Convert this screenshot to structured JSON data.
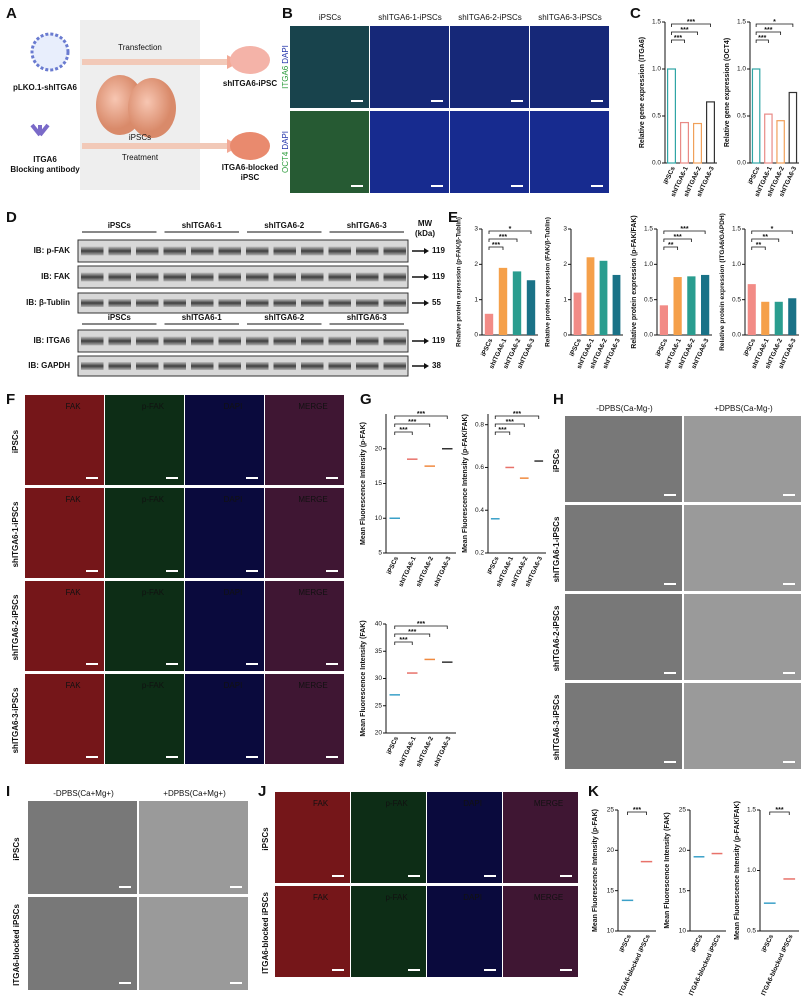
{
  "panels": {
    "A": {
      "label": "A",
      "plasmid": "pLKO.1-shITGA6",
      "antibody": [
        "ITGA6",
        "Blocking antibody"
      ],
      "transfection": "Transfection",
      "treatment": "Treatment",
      "center": "iPSCs",
      "result_top": "shITGA6-iPSC",
      "result_bottom": [
        "ITGA6-blocked",
        "iPSC"
      ]
    },
    "B": {
      "label": "B",
      "columns": [
        "iPSCs",
        "shITGA6-1-iPSCs",
        "shITGA6-2-iPSCs",
        "shITGA6-3-iPSCs"
      ],
      "rows": [
        {
          "marker": "ITGA6",
          "stain": "DAPI"
        },
        {
          "marker": "OCT4",
          "stain": "DAPI"
        }
      ]
    },
    "C": {
      "label": "C"
    },
    "D": {
      "label": "D",
      "groups": [
        "iPSCs",
        "shITGA6-1",
        "shITGA6-2",
        "shITGA6-3"
      ],
      "mw": "MW",
      "mw_unit": "(kDa)",
      "blots": [
        {
          "label": "IB: p-FAK",
          "mw": 119
        },
        {
          "label": "IB: FAK",
          "mw": 119
        },
        {
          "label": "IB: β-Tublin",
          "mw": 55
        },
        {
          "label": "IB: ITGA6",
          "mw": 119
        },
        {
          "label": "IB: GAPDH",
          "mw": 38
        }
      ]
    },
    "E": {
      "label": "E"
    },
    "F": {
      "label": "F",
      "channels": [
        "FAK",
        "p-FAK",
        "DAPI",
        "MERGE"
      ],
      "rows": [
        "iPSCs",
        "shITGA6-1-iPSCs",
        "shITGA6-2-iPSCs",
        "shITGA6-3-iPSCs"
      ]
    },
    "G": {
      "label": "G"
    },
    "H": {
      "label": "H",
      "columns": [
        "-DPBS(Ca-Mg-)",
        "+DPBS(Ca-Mg-)"
      ],
      "rows": [
        "iPSCs",
        "shITGA6-1-iPSCs",
        "shITGA6-2-iPSCs",
        "shITGA6-3-iPSCs"
      ]
    },
    "I": {
      "label": "I",
      "columns": [
        "-DPBS(Ca+Mg+)",
        "+DPBS(Ca+Mg+)"
      ],
      "rows": [
        "iPSCs",
        "ITGA6-blocked iPSCs"
      ]
    },
    "J": {
      "label": "J",
      "channels": [
        "FAK",
        "p-FAK",
        "DAPI",
        "MERGE"
      ],
      "rows": [
        "iPSCs",
        "ITGA6-blocked iPSCs"
      ]
    },
    "K": {
      "label": "K"
    }
  },
  "chart_data": [
    {
      "type": "bar",
      "style": "outline",
      "y_label": "Relative gene expression (ITGA6)",
      "categories": [
        "iPSCs",
        "shITGA6-1",
        "shITGA6-2",
        "shITGA6-3"
      ],
      "values": [
        1.0,
        0.43,
        0.42,
        0.65
      ],
      "colors": [
        "#2fa5a5",
        "#e98a86",
        "#f0a05a",
        "#333333"
      ],
      "ylim": [
        0,
        1.5
      ],
      "yticks": [
        {
          "value": 0,
          "label": "0.0"
        },
        0.5,
        {
          "value": 1,
          "label": "1.0"
        },
        1.5
      ],
      "significance": [
        "***",
        "***",
        "***"
      ]
    },
    {
      "type": "bar",
      "style": "outline",
      "y_label": "Relative gene expression (OCT4)",
      "categories": [
        "iPSCs",
        "shITGA6-1",
        "shITGA6-2",
        "shITGA6-3"
      ],
      "values": [
        1.0,
        0.52,
        0.45,
        0.75
      ],
      "colors": [
        "#2fa5a5",
        "#e98a86",
        "#f0a05a",
        "#333333"
      ],
      "ylim": [
        0,
        1.5
      ],
      "yticks": [
        {
          "value": 0,
          "label": "0.0"
        },
        0.5,
        {
          "value": 1,
          "label": "1.0"
        },
        1.5
      ],
      "significance": [
        "***",
        "***",
        "*"
      ]
    },
    {
      "type": "bar",
      "style": "fill",
      "y_label": "Relative protein expression (p-FAK/β-Tublin)",
      "categories": [
        "iPSCs",
        "shITGA6-1",
        "shITGA6-2",
        "shITGA6-3"
      ],
      "values": [
        0.6,
        1.9,
        1.8,
        1.55
      ],
      "colors": [
        "#f28b86",
        "#f5a04a",
        "#2a9d8f",
        "#1a7287"
      ],
      "ylim": [
        0,
        3
      ],
      "yticks": [
        0,
        1,
        2,
        3
      ],
      "significance": [
        "***",
        "***",
        "*"
      ]
    },
    {
      "type": "bar",
      "style": "fill",
      "y_label": "Relative protein expression (FAK/β-Tublin)",
      "categories": [
        "iPSCs",
        "shITGA6-1",
        "shITGA6-2",
        "shITGA6-3"
      ],
      "values": [
        1.2,
        2.2,
        2.1,
        1.7
      ],
      "colors": [
        "#f28b86",
        "#f5a04a",
        "#2a9d8f",
        "#1a7287"
      ],
      "ylim": [
        0,
        3
      ],
      "yticks": [
        0,
        1,
        2,
        3
      ]
    },
    {
      "type": "bar",
      "style": "fill",
      "y_label": "Relative protein expression (p-FAK/FAK)",
      "categories": [
        "iPSCs",
        "shITGA6-1",
        "shITGA6-2",
        "shITGA6-3"
      ],
      "values": [
        0.42,
        0.82,
        0.83,
        0.85
      ],
      "colors": [
        "#f28b86",
        "#f5a04a",
        "#2a9d8f",
        "#1a7287"
      ],
      "ylim": [
        0,
        1.5
      ],
      "yticks": [
        {
          "value": 0,
          "label": "0.0"
        },
        0.5,
        {
          "value": 1,
          "label": "1.0"
        },
        1.5
      ],
      "significance": [
        "**",
        "***",
        "***"
      ]
    },
    {
      "type": "bar",
      "style": "fill",
      "y_label": "Relative protein expression (ITGA6/GAPDH)",
      "categories": [
        "iPSCs",
        "shITGA6-1",
        "shITGA6-2",
        "shITGA6-3"
      ],
      "values": [
        0.72,
        0.47,
        0.47,
        0.52
      ],
      "colors": [
        "#f28b86",
        "#f5a04a",
        "#2a9d8f",
        "#1a7287"
      ],
      "ylim": [
        0,
        1.5
      ],
      "yticks": [
        {
          "value": 0,
          "label": "0.0"
        },
        0.5,
        {
          "value": 1,
          "label": "1.0"
        },
        1.5
      ],
      "significance": [
        "**",
        "**",
        "*"
      ]
    },
    {
      "type": "dot",
      "y_label": "Mean Fluorescence Intensity (p-FAK)",
      "categories": [
        "iPSCs",
        "shITGA6-1",
        "shITGA6-2",
        "shITGA6-3"
      ],
      "values": [
        10,
        18.5,
        17.5,
        20
      ],
      "colors": [
        "#3aa0c8",
        "#e8726a",
        "#f08a40",
        "#333333"
      ],
      "ylim": [
        5,
        25
      ],
      "yticks": [
        5,
        10,
        15,
        20
      ],
      "significance": [
        "***",
        "***",
        "***"
      ]
    },
    {
      "type": "dot",
      "y_label": "Mean Fluorescence Intensity (p-FAK/FAK)",
      "categories": [
        "iPSCs",
        "shITGA6-1",
        "shITGA6-2",
        "shITGA6-3"
      ],
      "values": [
        0.36,
        0.6,
        0.55,
        0.63
      ],
      "colors": [
        "#3aa0c8",
        "#e8726a",
        "#f08a40",
        "#333333"
      ],
      "ylim": [
        0.2,
        0.85
      ],
      "yticks": [
        0.2,
        0.4,
        0.6,
        0.8
      ],
      "significance": [
        "***",
        "***",
        "***"
      ]
    },
    {
      "type": "dot",
      "y_label": "Mean Fluorescence Intensity (FAK)",
      "categories": [
        "iPSCs",
        "shITGA6-1",
        "shITGA6-2",
        "shITGA6-3"
      ],
      "values": [
        27,
        31,
        33.5,
        33
      ],
      "colors": [
        "#3aa0c8",
        "#e8726a",
        "#f08a40",
        "#333333"
      ],
      "ylim": [
        20,
        40
      ],
      "yticks": [
        20,
        25,
        30,
        35,
        40
      ],
      "significance": [
        "***",
        "***",
        "***"
      ]
    },
    {
      "type": "dot",
      "y_label": "Mean Fluorescence Intensity (p-FAK)",
      "categories": [
        "iPSCs",
        "ITGA6-blocked iPSCs"
      ],
      "values": [
        13.8,
        18.6
      ],
      "colors": [
        "#3aa0c8",
        "#e8726a"
      ],
      "ylim": [
        10,
        25
      ],
      "yticks": [
        10,
        15,
        20,
        25
      ],
      "significance": [
        "***"
      ]
    },
    {
      "type": "dot",
      "y_label": "Mean Fluorescence Intensity (FAK)",
      "categories": [
        "iPSCs",
        "ITGA6-blocked iPSCs"
      ],
      "values": [
        19.2,
        19.6
      ],
      "colors": [
        "#3aa0c8",
        "#e8726a"
      ],
      "ylim": [
        10,
        25
      ],
      "yticks": [
        10,
        15,
        20,
        25
      ]
    },
    {
      "type": "dot",
      "y_label": "Mean Fluorescence Intensity (p-FAK/FAK)",
      "categories": [
        "iPSCs",
        "ITGA6-blocked iPSCs"
      ],
      "values": [
        0.73,
        0.93
      ],
      "colors": [
        "#3aa0c8",
        "#e8726a"
      ],
      "ylim": [
        0.5,
        1.5
      ],
      "yticks": [
        0.5,
        {
          "value": 1,
          "label": "1.0"
        },
        1.5
      ],
      "significance": [
        "***"
      ]
    }
  ]
}
